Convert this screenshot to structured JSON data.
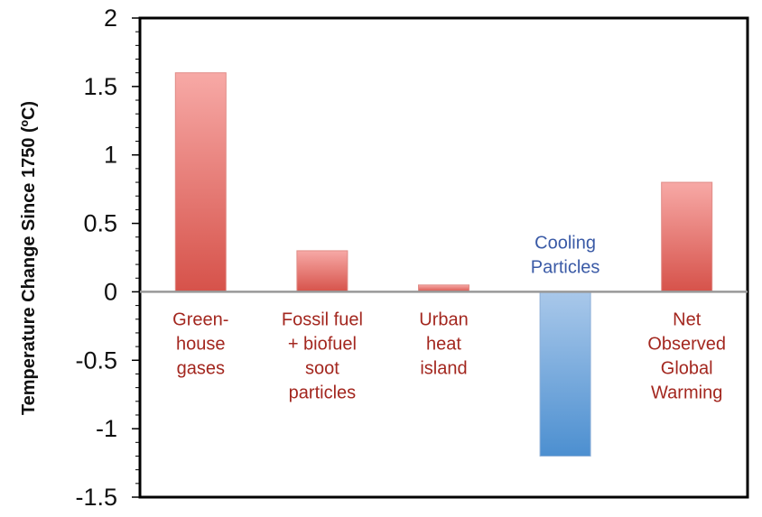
{
  "chart_data": {
    "type": "bar",
    "title": "",
    "xlabel": "",
    "ylabel": "Temperature Change Since 1750 (ºC)",
    "ylim": [
      -1.5,
      2
    ],
    "yticks": [
      "2",
      "1.5",
      "1",
      "0.5",
      "0",
      "-0.5",
      "-1",
      "-1.5"
    ],
    "grid": false,
    "legend": "none",
    "categories": [
      {
        "lines": [
          "Green-",
          "house",
          "gases"
        ],
        "value": 1.6,
        "color": "red",
        "label_position": "below-axis"
      },
      {
        "lines": [
          "Fossil fuel",
          "+ biofuel",
          "soot",
          "particles"
        ],
        "value": 0.3,
        "color": "red",
        "label_position": "below-axis"
      },
      {
        "lines": [
          "Urban",
          "heat",
          "island"
        ],
        "value": 0.05,
        "color": "red",
        "label_position": "below-axis"
      },
      {
        "lines": [
          "Cooling",
          "Particles"
        ],
        "value": -1.2,
        "color": "blue",
        "label_position": "above-axis"
      },
      {
        "lines": [
          "Net",
          "Observed",
          "Global",
          "Warming"
        ],
        "value": 0.8,
        "color": "red",
        "label_position": "below-axis"
      }
    ],
    "colors": {
      "red_top": "#f7a9a6",
      "red_bottom": "#d6524a",
      "blue_top": "#a9c8ea",
      "blue_bottom": "#4c8fd0",
      "red_text": "#a3271f",
      "blue_text": "#3a5aa6",
      "zero_line": "#999999"
    }
  }
}
